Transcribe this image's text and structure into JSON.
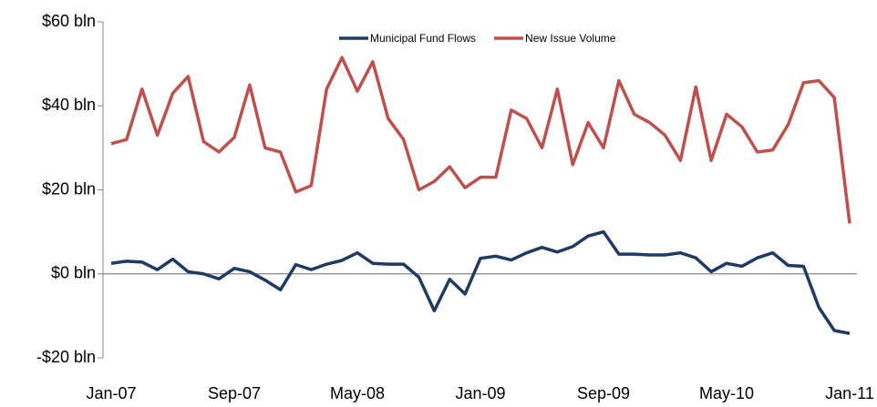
{
  "chart_data": {
    "type": "line",
    "categories": [
      "Jan-07",
      null,
      null,
      null,
      null,
      null,
      null,
      null,
      "Sep-07",
      null,
      null,
      null,
      null,
      null,
      null,
      null,
      "May-08",
      null,
      null,
      null,
      null,
      null,
      null,
      null,
      "Jan-09",
      null,
      null,
      null,
      null,
      null,
      null,
      null,
      "Sep-09",
      null,
      null,
      null,
      null,
      null,
      null,
      null,
      "May-10",
      null,
      null,
      null,
      null,
      null,
      null,
      null,
      "Jan-11"
    ],
    "series": [
      {
        "name": "Municipal Fund Flows",
        "color": "#1f3b63",
        "values": [
          2.5,
          3,
          2.8,
          1,
          3.5,
          0.5,
          0,
          -1.2,
          1.3,
          0.5,
          -1.5,
          -3.8,
          2.2,
          1,
          2.3,
          3.2,
          5,
          2.5,
          2.3,
          2.3,
          -0.8,
          -8.8,
          -1.3,
          -4.8,
          3.7,
          4.2,
          3.3,
          5,
          6.3,
          5.2,
          6.5,
          9,
          10,
          4.7,
          4.7,
          4.5,
          4.5,
          5,
          3.8,
          0.5,
          2.5,
          1.8,
          3.8,
          5,
          2,
          1.8,
          -8,
          -13.5,
          -14.2
        ]
      },
      {
        "name": "New Issue Volume",
        "color": "#c0504d",
        "values": [
          31,
          32,
          44,
          33,
          43,
          47,
          31.5,
          29,
          32.5,
          45,
          30,
          29,
          19.5,
          21,
          44,
          51.5,
          43.5,
          50.5,
          37,
          32,
          20,
          22,
          25.5,
          20.5,
          23,
          23,
          39,
          37,
          30,
          44,
          26,
          36,
          30,
          46,
          38,
          36,
          33,
          27,
          44.5,
          27,
          38,
          35,
          29,
          29.5,
          35.5,
          45.5,
          46,
          42,
          12
        ]
      }
    ],
    "ylim": [
      -20,
      60
    ],
    "yticks": [
      {
        "value": -20,
        "label": "-$20 bln"
      },
      {
        "value": 0,
        "label": "$0 bln"
      },
      {
        "value": 20,
        "label": "$20 bln"
      },
      {
        "value": 40,
        "label": "$40 bln"
      },
      {
        "value": 60,
        "label": "$60 bln"
      }
    ],
    "legend": "top"
  }
}
